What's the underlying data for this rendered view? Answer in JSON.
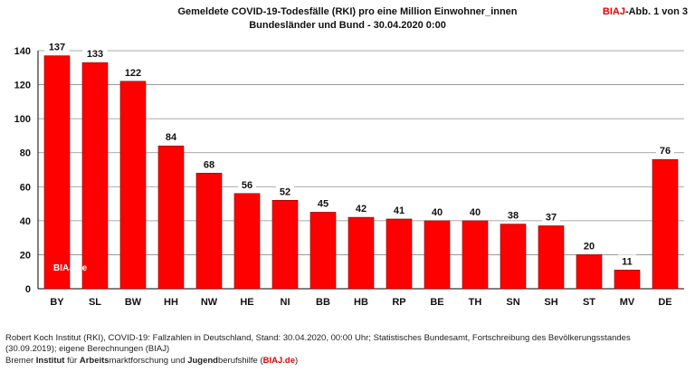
{
  "header": {
    "title_line1": "Gemeldete COVID-19-Todesfälle (RKI) pro eine Million Einwohner_innen",
    "title_line2": "Bundesländer und Bund - 30.04.2020 0:00",
    "badge_brand": "BIAJ",
    "badge_rest": "-Abb. 1 von 3"
  },
  "chart_logo": "BIAJ.de",
  "colors": {
    "bar": "#ff0000",
    "bar_stroke": "#7a0000",
    "brand": "#e00000",
    "grid": "#8c8c8c"
  },
  "chart_data": {
    "type": "bar",
    "title": "",
    "xlabel": "",
    "ylabel": "",
    "categories": [
      "BY",
      "SL",
      "BW",
      "HH",
      "NW",
      "HE",
      "NI",
      "BB",
      "HB",
      "RP",
      "BE",
      "TH",
      "SN",
      "SH",
      "ST",
      "MV",
      "DE"
    ],
    "values": [
      137,
      133,
      122,
      84,
      68,
      56,
      52,
      45,
      42,
      41,
      40,
      40,
      38,
      37,
      20,
      11,
      76
    ],
    "ylim": [
      0,
      140
    ],
    "yticks": [
      0,
      20,
      40,
      60,
      80,
      100,
      120,
      140
    ],
    "grid": true,
    "legend": "none"
  },
  "footer": {
    "line1": "Robert Koch Institut (RKI), COVID-19: Fallzahlen in Deutschland, Stand: 30.04.2020, 00:00 Uhr; Statistisches Bundesamt, Fortschreibung des Bevölkerungsstandes",
    "line2": "(30.09.2019); eigene Berechnungen (BIAJ)",
    "line3_part1": "Bremer ",
    "line3_part2": "Institut",
    "line3_part3": " für ",
    "line3_part4": "Arbeits",
    "line3_part5": "marktforschung und ",
    "line3_part6": "Jugend",
    "line3_part7": "berufshilfe (",
    "line3_part8": "BIAJ.de",
    "line3_part9": ")"
  }
}
